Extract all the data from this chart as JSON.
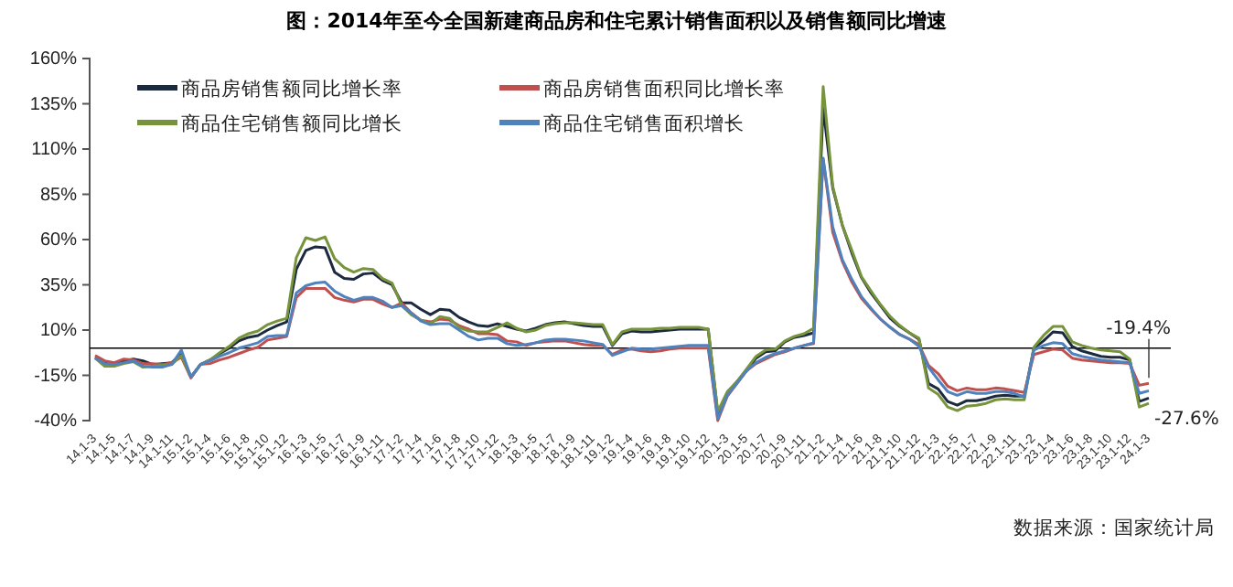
{
  "chart_data": {
    "type": "line",
    "title": "图：2014年至今全国新建商品房和住宅累计销售面积以及销售额同比增速",
    "categories": [
      "14.1-3",
      null,
      "14.1-5",
      null,
      "14.1-7",
      null,
      "14.1-9",
      null,
      "14.1-11",
      null,
      "15.1-2",
      null,
      "15.1-4",
      null,
      "15.1-6",
      null,
      "15.1-8",
      null,
      "15.1-10",
      null,
      "15.1-12",
      null,
      "16.1-3",
      null,
      "16.1-5",
      null,
      "16.1-7",
      null,
      "16.1-9",
      null,
      "16.1-11",
      null,
      "17.1-2",
      null,
      "17.1-4",
      null,
      "17.1-6",
      null,
      "17.1-8",
      null,
      "17.1-10",
      null,
      "17.1-12",
      null,
      "18.1-3",
      null,
      "18.1-5",
      null,
      "18.1-7",
      null,
      "18.1-9",
      null,
      "18.1-11",
      null,
      "19.1-2",
      null,
      "19.1-4",
      null,
      "19.1-6",
      null,
      "19.1-8",
      null,
      "19.1-10",
      null,
      "19.1-12",
      null,
      "20.1-3",
      null,
      "20.1-5",
      null,
      "20.1-7",
      null,
      "20.1-9",
      null,
      "20.1-11",
      null,
      "21.1-2",
      null,
      "21.1-4",
      null,
      "21.1-6",
      null,
      "21.1-8",
      null,
      "21.1-10",
      null,
      "21.1-12",
      null,
      "22.1-3",
      null,
      "22.1-5",
      null,
      "22.1-7",
      null,
      "22.1-9",
      null,
      "22.1-11",
      null,
      "23.1-2",
      null,
      "23.1-4",
      null,
      "23.1-6",
      null,
      "23.1-8",
      null,
      "23.1-10",
      null,
      "23.1-12",
      null,
      "24.1-3"
    ],
    "series": [
      {
        "name": "商品房销售额同比增长率",
        "color": "#1b2a3f",
        "values": [
          -5,
          -8,
          -8.5,
          -7,
          -6,
          -7,
          -9,
          -8.5,
          -8,
          -3,
          -16,
          -9,
          -6.5,
          -3,
          0,
          4,
          6,
          7,
          10,
          12.5,
          14.5,
          43.5,
          54,
          56,
          55.5,
          42,
          38.5,
          38,
          41,
          41.5,
          37.5,
          35,
          25,
          25,
          21.5,
          18.5,
          21.5,
          21,
          17,
          14.5,
          12.5,
          12,
          13.5,
          12,
          10.5,
          9.5,
          11,
          13,
          14,
          14.5,
          13.5,
          12.5,
          12,
          12,
          1.5,
          8,
          9.5,
          9,
          9,
          9.5,
          10,
          10.5,
          10.5,
          10.5,
          10.5,
          -36,
          -24.5,
          -18.5,
          -12.5,
          -5.5,
          -2,
          -1.5,
          3.5,
          6,
          7,
          8.5,
          133,
          88.5,
          68,
          52.5,
          39,
          30.5,
          23.5,
          16.5,
          12,
          8.5,
          5,
          -19.5,
          -22.5,
          -29.5,
          -31.5,
          -29,
          -29,
          -28,
          -26.5,
          -26,
          -26.5,
          -26.5,
          0,
          4,
          9,
          8.5,
          1,
          -1.5,
          -3,
          -4.5,
          -5,
          -5,
          -6.5,
          -29.5,
          -27.6
        ]
      },
      {
        "name": "商品房销售面积同比增长率",
        "color": "#c0504d",
        "values": [
          -4,
          -7,
          -8,
          -6,
          -6.5,
          -8.5,
          -8.5,
          -9,
          -8,
          -5,
          -16.5,
          -9,
          -8.5,
          -6.5,
          -5,
          -3,
          -1,
          0.5,
          4.5,
          5.5,
          6.5,
          28,
          33,
          33,
          33,
          28,
          26.5,
          25.5,
          27,
          27,
          24.5,
          22.5,
          25,
          19.5,
          15.5,
          14.5,
          16,
          15.5,
          12.5,
          10.5,
          8,
          8,
          7.5,
          4,
          3.5,
          1.5,
          3,
          3.5,
          4,
          4,
          3,
          2,
          1.5,
          1.5,
          -3.5,
          -1,
          -0.5,
          -1.5,
          -2,
          -1.5,
          -0.5,
          0,
          0,
          0,
          0,
          -40,
          -26.5,
          -19.5,
          -12.5,
          -8.5,
          -6,
          -3.5,
          -2,
          0,
          1.5,
          2.5,
          104.5,
          64,
          48,
          36.5,
          27.5,
          21.5,
          16,
          11.5,
          7.5,
          5,
          2,
          -9.5,
          -14,
          -21,
          -23.5,
          -22,
          -23,
          -23,
          -22,
          -22.5,
          -23.5,
          -24.5,
          -3.5,
          -2,
          -0.5,
          -1,
          -5.5,
          -6.5,
          -7,
          -7.5,
          -8,
          -8,
          -8.5,
          -20.5,
          -19.4
        ]
      },
      {
        "name": "商品住宅销售额同比增长",
        "color": "#77933c",
        "values": [
          -5.5,
          -10,
          -10,
          -8.5,
          -7.5,
          -10.5,
          -10,
          -9.5,
          -9,
          -4,
          -16,
          -9,
          -6.5,
          -2.5,
          1,
          5.5,
          8,
          9.5,
          13,
          15,
          16.5,
          50,
          61,
          59.5,
          61.5,
          49.5,
          44.5,
          42,
          44,
          43.5,
          38.5,
          36,
          23.5,
          18.5,
          15.5,
          13.5,
          17.5,
          16.5,
          11.5,
          9.5,
          9,
          9,
          11.5,
          14,
          11,
          9,
          10,
          12.5,
          13.5,
          14,
          14,
          13.5,
          13,
          13,
          2,
          9,
          10.5,
          10.5,
          10.5,
          11,
          11,
          11.5,
          11.5,
          11.5,
          10.5,
          -35,
          -24,
          -18.5,
          -11.5,
          -4.5,
          -1,
          -0.5,
          4,
          6.5,
          8,
          11,
          144.5,
          89.5,
          68,
          54,
          39.5,
          31.5,
          24,
          17.5,
          12.5,
          8.5,
          5.5,
          -22,
          -25.5,
          -32.5,
          -34.5,
          -32,
          -31.5,
          -30.5,
          -28.5,
          -28,
          -28.5,
          -28.5,
          0.5,
          7,
          12,
          12,
          3.5,
          1.5,
          0,
          -1,
          -1.5,
          -2,
          -6,
          -32.5,
          -30.5
        ]
      },
      {
        "name": "商品住宅销售面积增长",
        "color": "#4f81bd",
        "values": [
          -5.5,
          -8.5,
          -9,
          -8,
          -7,
          -10,
          -10.5,
          -10.5,
          -9,
          -1,
          -16,
          -9,
          -7,
          -4.5,
          -2.5,
          0,
          1.5,
          3,
          6.5,
          7,
          7,
          30.5,
          34.5,
          36,
          36.5,
          31.5,
          28.5,
          26.5,
          28,
          28,
          26,
          22.5,
          23.5,
          19.5,
          15,
          13,
          13.5,
          13.5,
          10,
          6.5,
          4.5,
          5.5,
          5.5,
          2.5,
          1.5,
          2,
          3,
          4.5,
          5,
          5,
          4.5,
          4,
          3,
          2,
          -4,
          -2,
          0,
          -0.5,
          -0.5,
          0,
          0.5,
          1,
          1.5,
          1.5,
          1.5,
          -39,
          -26,
          -19.5,
          -12.5,
          -8,
          -5,
          -3,
          -1.5,
          0,
          1.5,
          3,
          105,
          67,
          49,
          38,
          28.5,
          22,
          16,
          11.5,
          7.5,
          5,
          1,
          -10.5,
          -17.5,
          -24,
          -26,
          -24,
          -25,
          -25,
          -24,
          -24,
          -25,
          -27,
          -1,
          1.5,
          3,
          2.5,
          -3,
          -4.5,
          -5.5,
          -6.5,
          -7,
          -7.5,
          -8,
          -25,
          -23.5
        ]
      }
    ],
    "ylim": [
      -40,
      160
    ],
    "yticks": [
      {
        "value": -40,
        "label": "-40%"
      },
      {
        "value": -15,
        "label": "-15%"
      },
      {
        "value": 10,
        "label": "10%"
      },
      {
        "value": 35,
        "label": "35%"
      },
      {
        "value": 60,
        "label": "60%"
      },
      {
        "value": 85,
        "label": "85%"
      },
      {
        "value": 110,
        "label": "110%"
      },
      {
        "value": 135,
        "label": "135%"
      },
      {
        "value": 160,
        "label": "160%"
      }
    ],
    "ref_lines": [
      {
        "axis": "y",
        "value": 0,
        "color": "#000000"
      }
    ],
    "annotations": [
      {
        "text": "-19.4%",
        "x": "24.1-3",
        "y": -19.4
      },
      {
        "text": "-27.6%",
        "x": "24.1-3",
        "y": -27.6
      },
      "数据来源：国家统计局"
    ],
    "legend": "top",
    "grid": false,
    "marker": "none",
    "line_style": "solid"
  }
}
